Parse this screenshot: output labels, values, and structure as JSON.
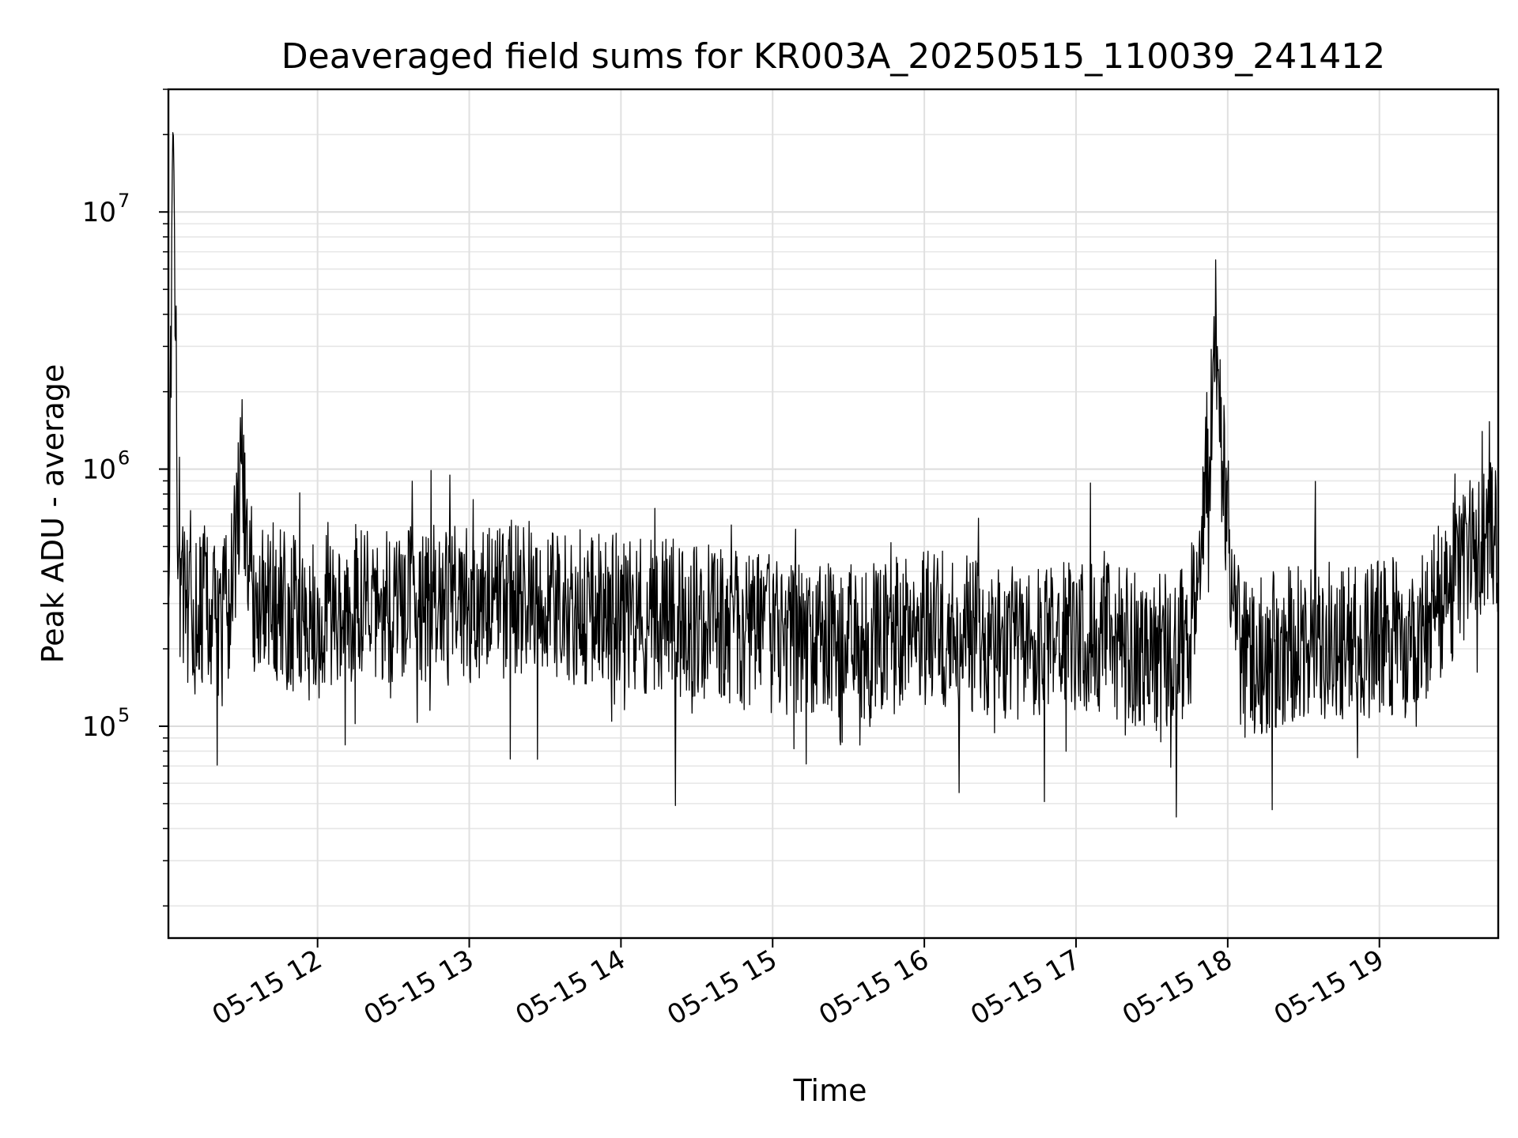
{
  "chart_data": {
    "type": "line",
    "title": "Deaveraged field sums for KR003A_20250515_110039_241412",
    "xlabel": "Time",
    "ylabel": "Peak ADU - average",
    "y_scale": "log",
    "ylim": [
      15000,
      30000000
    ],
    "xlim": [
      "2025-05-15 11:01",
      "2025-05-15 19:47"
    ],
    "grid": true,
    "line_color": "#000000",
    "x_ticks": [
      {
        "value": "2025-05-15 12:00",
        "label": "05-15 12"
      },
      {
        "value": "2025-05-15 13:00",
        "label": "05-15 13"
      },
      {
        "value": "2025-05-15 14:00",
        "label": "05-15 14"
      },
      {
        "value": "2025-05-15 15:00",
        "label": "05-15 15"
      },
      {
        "value": "2025-05-15 16:00",
        "label": "05-15 16"
      },
      {
        "value": "2025-05-15 17:00",
        "label": "05-15 17"
      },
      {
        "value": "2025-05-15 18:00",
        "label": "05-15 18"
      },
      {
        "value": "2025-05-15 19:00",
        "label": "05-15 19"
      }
    ],
    "y_ticks": [
      {
        "value": 100000,
        "base": "10",
        "exp": "5"
      },
      {
        "value": 1000000,
        "base": "10",
        "exp": "6"
      },
      {
        "value": 10000000,
        "base": "10",
        "exp": "7"
      }
    ],
    "series": [
      {
        "x": [
          "2025-05-15 11:01",
          "2025-05-15 11:03",
          "2025-05-15 11:05",
          "2025-05-15 11:10",
          "2025-05-15 11:15",
          "2025-05-15 11:20",
          "2025-05-15 11:25",
          "2025-05-15 11:30",
          "2025-05-15 11:35",
          "2025-05-15 11:40",
          "2025-05-15 11:45",
          "2025-05-15 11:50",
          "2025-05-15 11:55",
          "2025-05-15 12:00",
          "2025-05-15 12:05",
          "2025-05-15 12:10",
          "2025-05-15 12:20",
          "2025-05-15 12:30",
          "2025-05-15 12:40",
          "2025-05-15 12:45",
          "2025-05-15 12:50",
          "2025-05-15 12:55",
          "2025-05-15 13:00",
          "2025-05-15 13:10",
          "2025-05-15 13:20",
          "2025-05-15 13:30",
          "2025-05-15 13:40",
          "2025-05-15 13:50",
          "2025-05-15 14:00",
          "2025-05-15 14:15",
          "2025-05-15 14:30",
          "2025-05-15 14:45",
          "2025-05-15 15:00",
          "2025-05-15 15:15",
          "2025-05-15 15:30",
          "2025-05-15 15:45",
          "2025-05-15 16:00",
          "2025-05-15 16:15",
          "2025-05-15 16:30",
          "2025-05-15 16:45",
          "2025-05-15 17:00",
          "2025-05-15 17:15",
          "2025-05-15 17:30",
          "2025-05-15 17:45",
          "2025-05-15 17:55",
          "2025-05-15 18:05",
          "2025-05-15 18:15",
          "2025-05-15 18:30",
          "2025-05-15 18:45",
          "2025-05-15 19:00",
          "2025-05-15 19:15",
          "2025-05-15 19:30",
          "2025-05-15 19:40",
          "2025-05-15 19:47"
        ],
        "y": [
          300000,
          21000000,
          400000,
          250000,
          300000,
          260000,
          280000,
          1000000,
          300000,
          320000,
          300000,
          280000,
          250000,
          260000,
          280000,
          300000,
          310000,
          290000,
          300000,
          310000,
          320000,
          300000,
          300000,
          310000,
          320000,
          300000,
          290000,
          280000,
          280000,
          270000,
          260000,
          240000,
          230000,
          220000,
          210000,
          220000,
          240000,
          230000,
          220000,
          200000,
          220000,
          210000,
          190000,
          220000,
          2300000,
          180000,
          190000,
          220000,
          210000,
          220000,
          230000,
          380000,
          520000,
          550000
        ]
      }
    ]
  }
}
